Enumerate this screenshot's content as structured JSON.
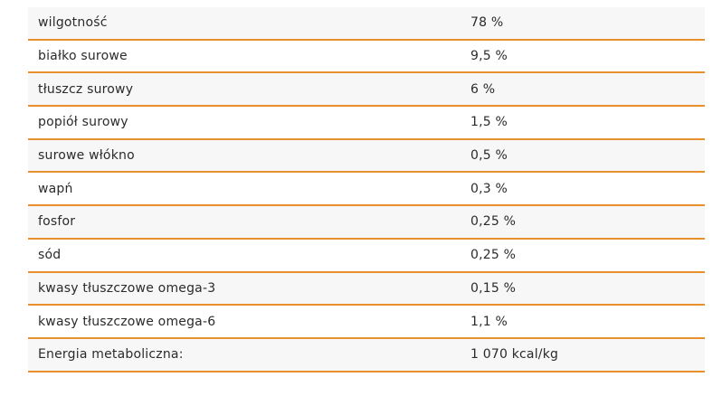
{
  "table": {
    "rows": [
      {
        "name": "wilgotność",
        "value": "78 %"
      },
      {
        "name": "białko surowe",
        "value": "9,5 %"
      },
      {
        "name": "tłuszcz surowy",
        "value": "6 %"
      },
      {
        "name": "popiół surowy",
        "value": "1,5 %"
      },
      {
        "name": "surowe włókno",
        "value": "0,5 %"
      },
      {
        "name": "wapń",
        "value": "0,3 %"
      },
      {
        "name": "fosfor",
        "value": "0,25 %"
      },
      {
        "name": "sód",
        "value": "0,25 %"
      },
      {
        "name": "kwasy tłuszczowe omega-3",
        "value": "0,15 %"
      },
      {
        "name": "kwasy tłuszczowe omega-6",
        "value": "1,1 %"
      },
      {
        "name": "Energia metaboliczna:",
        "value": "1 070 kcal/kg"
      }
    ]
  },
  "colors": {
    "divider": "#e8902e",
    "row_alt": "#f7f7f7",
    "text": "#2b2b2b"
  }
}
